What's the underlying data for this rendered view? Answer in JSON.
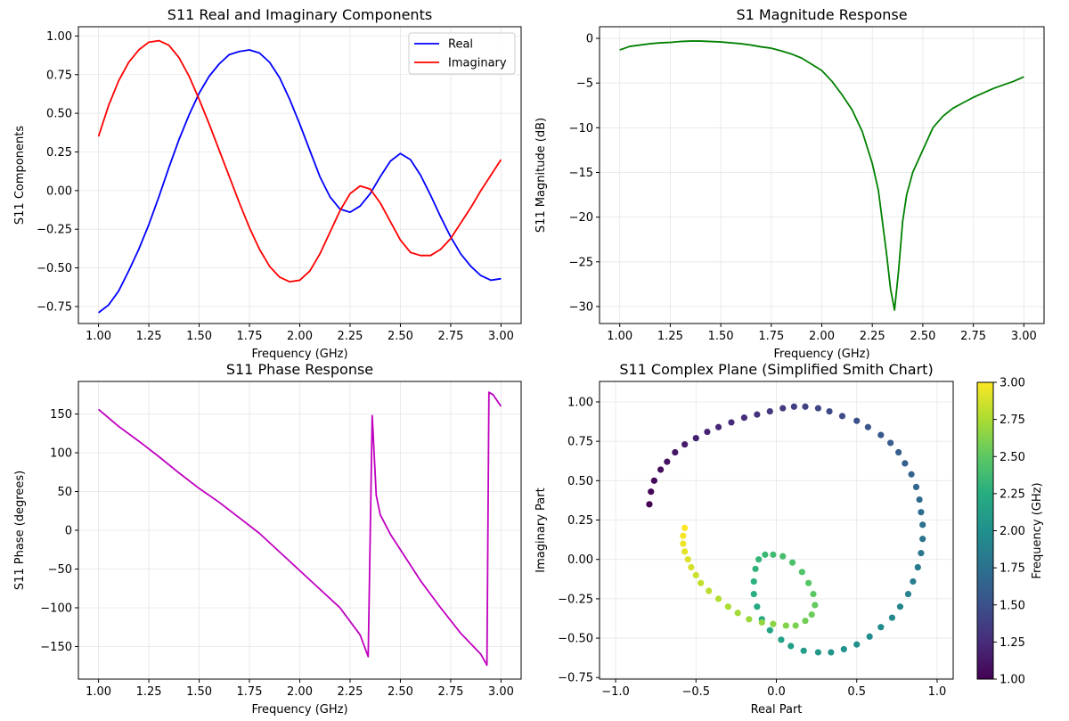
{
  "colors": {
    "real": "#0000ff",
    "imaginary": "#ff0000",
    "magnitude": "#008000",
    "phase": "#bf00bf",
    "grid": "#e6e6e6",
    "axis": "#000000"
  },
  "chart_data": [
    {
      "type": "line",
      "id": "components",
      "title": "S11 Real and Imaginary Components",
      "xlabel": "Frequency (GHz)",
      "ylabel": "S11 Components",
      "xlim": [
        0.9,
        3.1
      ],
      "ylim": [
        -0.86,
        1.06
      ],
      "xticks": [
        1.0,
        1.25,
        1.5,
        1.75,
        2.0,
        2.25,
        2.5,
        2.75,
        3.0
      ],
      "xtick_labels": [
        "1.00",
        "1.25",
        "1.50",
        "1.75",
        "2.00",
        "2.25",
        "2.50",
        "2.75",
        "3.00"
      ],
      "yticks": [
        -0.75,
        -0.5,
        -0.25,
        0.0,
        0.25,
        0.5,
        0.75,
        1.0
      ],
      "ytick_labels": [
        "−0.75",
        "−0.50",
        "−0.25",
        "0.00",
        "0.25",
        "0.50",
        "0.75",
        "1.00"
      ],
      "legend": {
        "position": "top-right",
        "entries": [
          "Real",
          "Imaginary"
        ]
      },
      "series": [
        {
          "name": "Real",
          "color_key": "real",
          "x": [
            1.0,
            1.05,
            1.1,
            1.15,
            1.2,
            1.25,
            1.3,
            1.35,
            1.4,
            1.45,
            1.5,
            1.55,
            1.6,
            1.65,
            1.7,
            1.75,
            1.8,
            1.85,
            1.9,
            1.95,
            2.0,
            2.05,
            2.1,
            2.15,
            2.2,
            2.25,
            2.3,
            2.35,
            2.4,
            2.45,
            2.5,
            2.55,
            2.6,
            2.65,
            2.7,
            2.75,
            2.8,
            2.85,
            2.9,
            2.95,
            3.0
          ],
          "y": [
            -0.79,
            -0.74,
            -0.65,
            -0.52,
            -0.38,
            -0.22,
            -0.04,
            0.15,
            0.33,
            0.49,
            0.63,
            0.74,
            0.82,
            0.88,
            0.9,
            0.91,
            0.89,
            0.83,
            0.73,
            0.59,
            0.43,
            0.26,
            0.09,
            -0.04,
            -0.12,
            -0.14,
            -0.1,
            -0.02,
            0.09,
            0.19,
            0.24,
            0.2,
            0.1,
            -0.03,
            -0.17,
            -0.3,
            -0.41,
            -0.49,
            -0.55,
            -0.58,
            -0.57
          ]
        },
        {
          "name": "Imaginary",
          "color_key": "imaginary",
          "x": [
            1.0,
            1.05,
            1.1,
            1.15,
            1.2,
            1.25,
            1.3,
            1.35,
            1.4,
            1.45,
            1.5,
            1.55,
            1.6,
            1.65,
            1.7,
            1.75,
            1.8,
            1.85,
            1.9,
            1.95,
            2.0,
            2.05,
            2.1,
            2.15,
            2.2,
            2.25,
            2.3,
            2.35,
            2.4,
            2.45,
            2.5,
            2.55,
            2.6,
            2.65,
            2.7,
            2.75,
            2.8,
            2.85,
            2.9,
            2.95,
            3.0
          ],
          "y": [
            0.35,
            0.55,
            0.71,
            0.83,
            0.91,
            0.96,
            0.97,
            0.94,
            0.86,
            0.74,
            0.59,
            0.43,
            0.26,
            0.09,
            -0.08,
            -0.24,
            -0.38,
            -0.49,
            -0.56,
            -0.59,
            -0.58,
            -0.52,
            -0.41,
            -0.27,
            -0.13,
            -0.02,
            0.03,
            0.01,
            -0.08,
            -0.2,
            -0.32,
            -0.4,
            -0.42,
            -0.42,
            -0.38,
            -0.31,
            -0.21,
            -0.11,
            0.0,
            0.1,
            0.2
          ]
        }
      ]
    },
    {
      "type": "line",
      "id": "magnitude",
      "title": "S1 Magnitude Response",
      "xlabel": "Frequency (GHz)",
      "ylabel": "S11 Magnitude (dB)",
      "xlim": [
        0.9,
        3.1
      ],
      "ylim": [
        -31.9,
        1.3
      ],
      "xticks": [
        1.0,
        1.25,
        1.5,
        1.75,
        2.0,
        2.25,
        2.5,
        2.75,
        3.0
      ],
      "xtick_labels": [
        "1.00",
        "1.25",
        "1.50",
        "1.75",
        "2.00",
        "2.25",
        "2.50",
        "2.75",
        "3.00"
      ],
      "yticks": [
        -30,
        -25,
        -20,
        -15,
        -10,
        -5,
        0
      ],
      "ytick_labels": [
        "−30",
        "−25",
        "−20",
        "−15",
        "−10",
        "−5",
        "0"
      ],
      "series": [
        {
          "name": "S11 Magnitude",
          "color_key": "magnitude",
          "x": [
            1.0,
            1.05,
            1.1,
            1.15,
            1.2,
            1.25,
            1.3,
            1.35,
            1.4,
            1.45,
            1.5,
            1.55,
            1.6,
            1.65,
            1.7,
            1.75,
            1.8,
            1.85,
            1.9,
            1.95,
            2.0,
            2.05,
            2.1,
            2.15,
            2.2,
            2.25,
            2.28,
            2.3,
            2.32,
            2.34,
            2.36,
            2.38,
            2.4,
            2.42,
            2.45,
            2.5,
            2.55,
            2.6,
            2.65,
            2.7,
            2.75,
            2.8,
            2.85,
            2.9,
            2.95,
            3.0
          ],
          "y": [
            -1.3,
            -0.9,
            -0.75,
            -0.6,
            -0.5,
            -0.45,
            -0.35,
            -0.3,
            -0.3,
            -0.35,
            -0.4,
            -0.5,
            -0.6,
            -0.75,
            -0.95,
            -1.1,
            -1.4,
            -1.75,
            -2.2,
            -2.9,
            -3.6,
            -4.8,
            -6.3,
            -8.0,
            -10.4,
            -14.0,
            -17.0,
            -20.5,
            -24.0,
            -28.0,
            -30.4,
            -26.0,
            -20.5,
            -17.5,
            -15.0,
            -12.5,
            -10.0,
            -8.7,
            -7.8,
            -7.2,
            -6.6,
            -6.1,
            -5.6,
            -5.2,
            -4.8,
            -4.3
          ]
        }
      ]
    },
    {
      "type": "line",
      "id": "phase",
      "title": "S11 Phase Response",
      "xlabel": "Frequency (GHz)",
      "ylabel": "S11 Phase (degrees)",
      "xlim": [
        0.9,
        3.1
      ],
      "ylim": [
        -192,
        192
      ],
      "xticks": [
        1.0,
        1.25,
        1.5,
        1.75,
        2.0,
        2.25,
        2.5,
        2.75,
        3.0
      ],
      "xtick_labels": [
        "1.00",
        "1.25",
        "1.50",
        "1.75",
        "2.00",
        "2.25",
        "2.50",
        "2.75",
        "3.00"
      ],
      "yticks": [
        -150,
        -100,
        -50,
        0,
        50,
        100,
        150
      ],
      "ytick_labels": [
        "−150",
        "−100",
        "−50",
        "0",
        "50",
        "100",
        "150"
      ],
      "series": [
        {
          "name": "S11 Phase",
          "color_key": "phase",
          "x": [
            1.0,
            1.1,
            1.2,
            1.3,
            1.4,
            1.5,
            1.6,
            1.7,
            1.8,
            1.9,
            2.0,
            2.1,
            2.2,
            2.3,
            2.34,
            2.36,
            2.38,
            2.4,
            2.45,
            2.5,
            2.6,
            2.7,
            2.8,
            2.9,
            2.93,
            2.94,
            2.96,
            3.0
          ],
          "y": [
            156,
            134,
            115,
            95,
            74,
            54,
            36,
            16,
            -4,
            -28,
            -52,
            -76,
            -100,
            -135,
            -163,
            148,
            45,
            20,
            -5,
            -25,
            -65,
            -100,
            -133,
            -160,
            -174,
            178,
            175,
            160
          ]
        }
      ]
    },
    {
      "type": "scatter",
      "id": "smith",
      "title": "S11 Complex Plane (Simplified Smith Chart)",
      "xlabel": "Real Part",
      "ylabel": "Imaginary Part",
      "xlim": [
        -1.1,
        1.1
      ],
      "ylim": [
        -0.76,
        1.13
      ],
      "xticks": [
        -1.0,
        -0.5,
        0.0,
        0.5,
        1.0
      ],
      "xtick_labels": [
        "−1.0",
        "−0.5",
        "0.0",
        "0.5",
        "1.0"
      ],
      "yticks": [
        -0.75,
        -0.5,
        -0.25,
        0.0,
        0.25,
        0.5,
        0.75,
        1.0
      ],
      "ytick_labels": [
        "−0.75",
        "−0.50",
        "−0.25",
        "0.00",
        "0.25",
        "0.50",
        "0.75",
        "1.00"
      ],
      "colorbar": {
        "label": "Frequency (GHz)",
        "range": [
          1.0,
          3.0
        ],
        "ticks": [
          1.0,
          1.25,
          1.5,
          1.75,
          2.0,
          2.25,
          2.5,
          2.75,
          3.0
        ],
        "tick_labels": [
          "1.00",
          "1.25",
          "1.50",
          "1.75",
          "2.00",
          "2.25",
          "2.50",
          "2.75",
          "3.00"
        ],
        "colormap": "viridis"
      },
      "points": {
        "freq": [
          1.0,
          1.025,
          1.05,
          1.075,
          1.1,
          1.125,
          1.15,
          1.175,
          1.2,
          1.225,
          1.25,
          1.275,
          1.3,
          1.325,
          1.35,
          1.375,
          1.4,
          1.425,
          1.45,
          1.475,
          1.5,
          1.525,
          1.55,
          1.575,
          1.6,
          1.625,
          1.65,
          1.675,
          1.7,
          1.725,
          1.75,
          1.775,
          1.8,
          1.825,
          1.85,
          1.875,
          1.9,
          1.925,
          1.95,
          1.975,
          2.0,
          2.025,
          2.05,
          2.075,
          2.1,
          2.125,
          2.15,
          2.175,
          2.2,
          2.225,
          2.25,
          2.275,
          2.3,
          2.325,
          2.35,
          2.375,
          2.4,
          2.425,
          2.45,
          2.475,
          2.5,
          2.525,
          2.55,
          2.575,
          2.6,
          2.625,
          2.65,
          2.675,
          2.7,
          2.725,
          2.75,
          2.775,
          2.8,
          2.825,
          2.85,
          2.875,
          2.9,
          2.925,
          2.95,
          2.975,
          3.0
        ],
        "real": [
          -0.79,
          -0.78,
          -0.76,
          -0.72,
          -0.68,
          -0.63,
          -0.57,
          -0.5,
          -0.43,
          -0.36,
          -0.28,
          -0.2,
          -0.12,
          -0.04,
          0.04,
          0.11,
          0.18,
          0.26,
          0.33,
          0.41,
          0.5,
          0.57,
          0.65,
          0.71,
          0.76,
          0.8,
          0.84,
          0.87,
          0.89,
          0.9,
          0.91,
          0.91,
          0.9,
          0.88,
          0.85,
          0.82,
          0.77,
          0.72,
          0.65,
          0.58,
          0.5,
          0.42,
          0.34,
          0.26,
          0.17,
          0.09,
          0.03,
          -0.04,
          -0.09,
          -0.12,
          -0.14,
          -0.14,
          -0.13,
          -0.11,
          -0.07,
          -0.02,
          0.04,
          0.1,
          0.16,
          0.2,
          0.23,
          0.24,
          0.22,
          0.18,
          0.12,
          0.06,
          -0.02,
          -0.09,
          -0.17,
          -0.24,
          -0.3,
          -0.36,
          -0.42,
          -0.47,
          -0.5,
          -0.53,
          -0.55,
          -0.57,
          -0.58,
          -0.58,
          -0.57
        ],
        "imag": [
          0.35,
          0.43,
          0.5,
          0.57,
          0.62,
          0.68,
          0.73,
          0.77,
          0.81,
          0.84,
          0.87,
          0.9,
          0.92,
          0.94,
          0.96,
          0.97,
          0.97,
          0.96,
          0.94,
          0.91,
          0.88,
          0.84,
          0.79,
          0.74,
          0.68,
          0.61,
          0.54,
          0.46,
          0.38,
          0.3,
          0.22,
          0.13,
          0.04,
          -0.05,
          -0.14,
          -0.22,
          -0.3,
          -0.37,
          -0.43,
          -0.49,
          -0.54,
          -0.57,
          -0.59,
          -0.59,
          -0.58,
          -0.55,
          -0.51,
          -0.45,
          -0.38,
          -0.3,
          -0.22,
          -0.14,
          -0.06,
          0.0,
          0.03,
          0.03,
          0.02,
          -0.02,
          -0.08,
          -0.15,
          -0.22,
          -0.29,
          -0.35,
          -0.39,
          -0.42,
          -0.42,
          -0.41,
          -0.4,
          -0.38,
          -0.34,
          -0.3,
          -0.25,
          -0.2,
          -0.15,
          -0.1,
          -0.05,
          0.0,
          0.05,
          0.1,
          0.15,
          0.2
        ]
      }
    }
  ]
}
